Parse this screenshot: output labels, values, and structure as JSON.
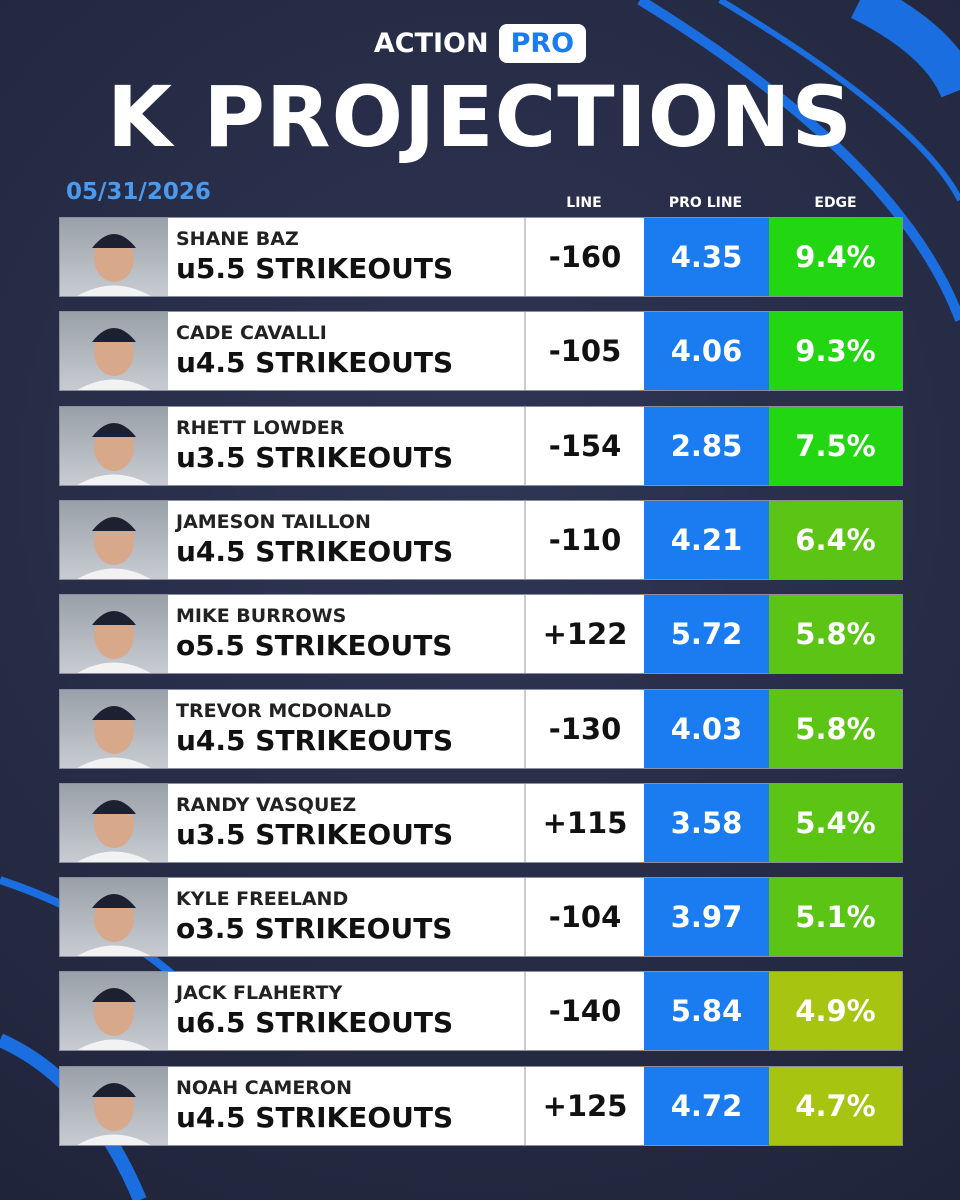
{
  "header": {
    "brand": "ACTION",
    "badge": "PRO",
    "title": "K PROJECTIONS",
    "date": "05/31/2026"
  },
  "columns": [
    "LINE",
    "PRO LINE",
    "EDGE"
  ],
  "rows": [
    {
      "name": "SHANE BAZ",
      "pick": "u5.5 STRIKEOUTS",
      "line": "-160",
      "pro_line": 4.35,
      "edge": "9.4%",
      "edge_color": "#22d611"
    },
    {
      "name": "CADE CAVALLI",
      "pick": "u4.5 STRIKEOUTS",
      "line": "-105",
      "pro_line": 4.06,
      "edge": "9.3%",
      "edge_color": "#22d611"
    },
    {
      "name": "RHETT LOWDER",
      "pick": "u3.5 STRIKEOUTS",
      "line": "-154",
      "pro_line": 2.85,
      "edge": "7.5%",
      "edge_color": "#22d611"
    },
    {
      "name": "JAMESON TAILLON",
      "pick": "u4.5 STRIKEOUTS",
      "line": "-110",
      "pro_line": 4.21,
      "edge": "6.4%",
      "edge_color": "#5cc414"
    },
    {
      "name": "MIKE BURROWS",
      "pick": "o5.5 STRIKEOUTS",
      "line": "+122",
      "pro_line": 5.72,
      "edge": "5.8%",
      "edge_color": "#5cc414"
    },
    {
      "name": "TREVOR MCDONALD",
      "pick": "u4.5 STRIKEOUTS",
      "line": "-130",
      "pro_line": 4.03,
      "edge": "5.8%",
      "edge_color": "#5cc414"
    },
    {
      "name": "RANDY VASQUEZ",
      "pick": "u3.5 STRIKEOUTS",
      "line": "+115",
      "pro_line": 3.58,
      "edge": "5.4%",
      "edge_color": "#5cc414"
    },
    {
      "name": "KYLE FREELAND",
      "pick": "o3.5 STRIKEOUTS",
      "line": "-104",
      "pro_line": 3.97,
      "edge": "5.1%",
      "edge_color": "#5cc414"
    },
    {
      "name": "JACK FLAHERTY",
      "pick": "u6.5 STRIKEOUTS",
      "line": "-140",
      "pro_line": 5.84,
      "edge": "4.9%",
      "edge_color": "#a6c410"
    },
    {
      "name": "NOAH CAMERON",
      "pick": "u4.5 STRIKEOUTS",
      "line": "+125",
      "pro_line": 4.72,
      "edge": "4.7%",
      "edge_color": "#a6c410"
    }
  ]
}
